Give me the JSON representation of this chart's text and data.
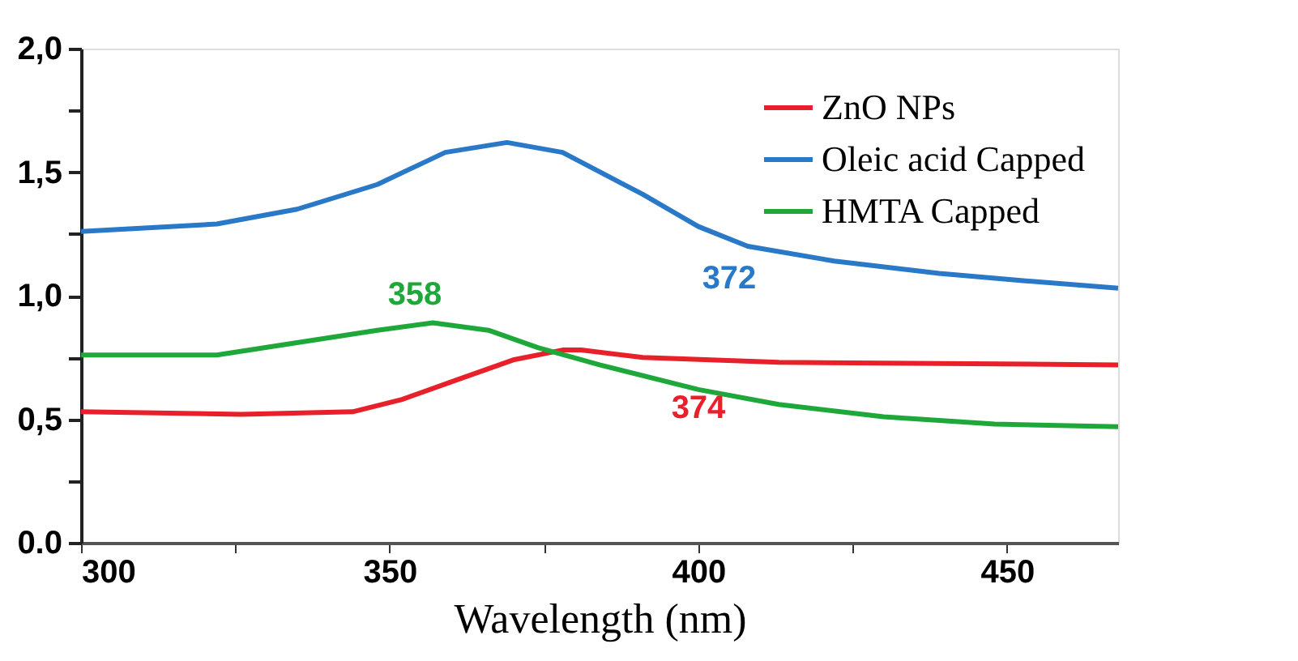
{
  "chart_data": {
    "type": "line",
    "xlabel": "Wavelength (nm)",
    "series": [
      {
        "name": "ZnO NPs",
        "color": "#e8202a",
        "x": [
          300,
          326,
          344,
          352,
          361,
          370,
          378,
          381,
          391,
          413,
          468
        ],
        "values": [
          0.53,
          0.52,
          0.53,
          0.58,
          0.66,
          0.74,
          0.78,
          0.78,
          0.75,
          0.73,
          0.72
        ]
      },
      {
        "name": "Oleic acid Capped",
        "color": "#2a78c8",
        "x": [
          300,
          322,
          335,
          348,
          359,
          369,
          378,
          391,
          400,
          408,
          422,
          439,
          453,
          468
        ],
        "values": [
          1.26,
          1.29,
          1.35,
          1.45,
          1.58,
          1.62,
          1.58,
          1.41,
          1.28,
          1.2,
          1.14,
          1.09,
          1.06,
          1.03
        ]
      },
      {
        "name": "HMTA Capped",
        "color": "#1fa83a",
        "x": [
          300,
          322,
          335,
          348,
          357,
          366,
          374,
          384,
          400,
          413,
          430,
          448,
          468
        ],
        "values": [
          0.76,
          0.76,
          0.81,
          0.86,
          0.89,
          0.86,
          0.79,
          0.72,
          0.62,
          0.56,
          0.51,
          0.48,
          0.47
        ]
      }
    ],
    "annotations": [
      "374",
      "372",
      "358"
    ],
    "xlim": [
      300,
      468
    ],
    "xticks": [
      300,
      {
        "value": 325,
        "label": null
      },
      350,
      {
        "value": 375,
        "label": null
      },
      400,
      {
        "value": 425,
        "label": null
      },
      450
    ],
    "ylim": [
      0,
      2
    ],
    "yticks": [
      {
        "value": 0,
        "label": "0.0"
      },
      {
        "value": 0.25,
        "label": null
      },
      {
        "value": 0.5,
        "label": "0,5"
      },
      {
        "value": 0.75,
        "label": null
      },
      {
        "value": 1,
        "label": "1,0"
      },
      {
        "value": 1.25,
        "label": null
      },
      {
        "value": 1.5,
        "label": "1,5"
      },
      {
        "value": 1.75,
        "label": null
      },
      {
        "value": 2,
        "label": "2,0"
      }
    ],
    "grid": false,
    "legend": "top right",
    "marker": "none",
    "line_style": "solid"
  }
}
